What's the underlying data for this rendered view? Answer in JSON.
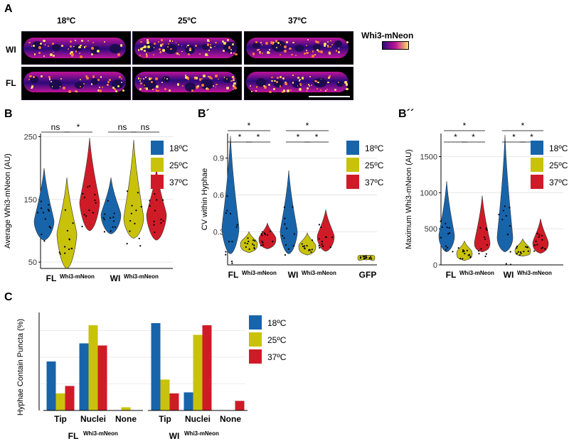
{
  "panels": {
    "A": "A",
    "B": "B",
    "B2": "B´",
    "B3": "B´´",
    "C": "C"
  },
  "panelA": {
    "temps": [
      "18ºC",
      "25ºC",
      "37ºC"
    ],
    "rows": [
      "WI",
      "FL"
    ],
    "legend_title": "Whi3-mNeon",
    "colors": {
      "low": "#2a0a7a",
      "mid": "#c1139a",
      "high": "#ffe066"
    }
  },
  "legend": {
    "items": [
      {
        "label": "18ºC",
        "color": "#1764ab"
      },
      {
        "label": "25ºC",
        "color": "#c8c20b"
      },
      {
        "label": "37ºC",
        "color": "#cf1b27"
      }
    ]
  },
  "chart_data": [
    {
      "id": "B",
      "type": "violin",
      "ylabel": "Average Whi3-mNeon (AU)",
      "ylim": [
        40,
        255
      ],
      "yticks": [
        50,
        150,
        250
      ],
      "groups": [
        "FL",
        "WI"
      ],
      "group_sub": "Whi3-mNeon",
      "series": [
        "18ºC",
        "25ºC",
        "37ºC"
      ],
      "values": {
        "FL": {
          "18ºC": {
            "min": 85,
            "median": 115,
            "max": 200
          },
          "25ºC": {
            "min": 40,
            "median": 95,
            "max": 185
          },
          "37ºC": {
            "min": 100,
            "median": 145,
            "max": 248
          }
        },
        "WI": {
          "18ºC": {
            "min": 95,
            "median": 125,
            "max": 185
          },
          "25ºC": {
            "min": 88,
            "median": 120,
            "max": 245
          },
          "37ºC": {
            "min": 85,
            "median": 125,
            "max": 200
          }
        }
      },
      "significance": [
        {
          "label": "ns",
          "group": "FL",
          "from": "18ºC",
          "to": "25ºC"
        },
        {
          "label": "*",
          "group": "FL",
          "from": "25ºC",
          "to": "37ºC"
        },
        {
          "label": "ns",
          "group": "WI",
          "from": "18ºC",
          "to": "25ºC"
        },
        {
          "label": "ns",
          "group": "WI",
          "from": "25ºC",
          "to": "37ºC"
        }
      ]
    },
    {
      "id": "B2",
      "type": "violin",
      "ylabel": "CV within Hyphae",
      "ylim": [
        0.03,
        1.1
      ],
      "yticks": [
        0.3,
        0.6,
        0.9
      ],
      "groups": [
        "FL",
        "WI",
        "GFP"
      ],
      "group_sub": "Whi3-mNeon",
      "series": [
        "18ºC",
        "25ºC",
        "37ºC"
      ],
      "values": {
        "FL": {
          "18ºC": {
            "min": 0.12,
            "median": 0.33,
            "max": 1.08
          },
          "25ºC": {
            "min": 0.13,
            "median": 0.2,
            "max": 0.3
          },
          "37ºC": {
            "min": 0.16,
            "median": 0.24,
            "max": 0.37
          }
        },
        "WI": {
          "18ºC": {
            "min": 0.12,
            "median": 0.3,
            "max": 0.8
          },
          "25ºC": {
            "min": 0.11,
            "median": 0.18,
            "max": 0.29
          },
          "37ºC": {
            "min": 0.14,
            "median": 0.26,
            "max": 0.48
          }
        },
        "GFP": {
          "25ºC": {
            "min": 0.07,
            "median": 0.09,
            "max": 0.11
          }
        }
      },
      "significance": [
        {
          "label": "*",
          "group": "FL",
          "from": "18ºC",
          "to": "37ºC"
        },
        {
          "label": "*",
          "group": "FL",
          "from": "18ºC",
          "to": "25ºC"
        },
        {
          "label": "*",
          "group": "FL",
          "from": "25ºC",
          "to": "37ºC"
        },
        {
          "label": "*",
          "group": "WI",
          "from": "18ºC",
          "to": "37ºC"
        },
        {
          "label": "*",
          "group": "WI",
          "from": "18ºC",
          "to": "25ºC"
        },
        {
          "label": "*",
          "group": "WI",
          "from": "25ºC",
          "to": "37ºC"
        }
      ]
    },
    {
      "id": "B3",
      "type": "violin",
      "ylabel": "Maximum Whi3-mNeon (AU)",
      "ylim": [
        0,
        1820
      ],
      "yticks": [
        0,
        500,
        1000,
        1500
      ],
      "groups": [
        "FL",
        "WI"
      ],
      "group_sub": "Whi3-mNeon",
      "series": [
        "18ºC",
        "25ºC",
        "37ºC"
      ],
      "values": {
        "FL": {
          "18ºC": {
            "min": 180,
            "median": 400,
            "max": 1160
          },
          "25ºC": {
            "min": 60,
            "median": 160,
            "max": 330
          },
          "37ºC": {
            "min": 180,
            "median": 300,
            "max": 960
          }
        },
        "WI": {
          "18ºC": {
            "min": 180,
            "median": 380,
            "max": 1800
          },
          "25ºC": {
            "min": 120,
            "median": 200,
            "max": 360
          },
          "37ºC": {
            "min": 160,
            "median": 300,
            "max": 640
          }
        }
      },
      "significance": [
        {
          "label": "*",
          "group": "FL",
          "from": "18ºC",
          "to": "37ºC"
        },
        {
          "label": "*",
          "group": "FL",
          "from": "18ºC",
          "to": "25ºC"
        },
        {
          "label": "*",
          "group": "FL",
          "from": "25ºC",
          "to": "37ºC"
        },
        {
          "label": "*",
          "group": "WI",
          "from": "18ºC",
          "to": "37ºC"
        },
        {
          "label": "*",
          "group": "WI",
          "from": "18ºC",
          "to": "25ºC"
        },
        {
          "label": "*",
          "group": "WI",
          "from": "25ºC",
          "to": "37ºC"
        }
      ]
    },
    {
      "id": "C",
      "type": "bar",
      "ylabel": "Hyphae Contain Puncta (%)",
      "ylim": [
        0,
        92
      ],
      "categories": [
        "Tip",
        "Nuclei",
        "None",
        "Tip",
        "Nuclei",
        "None"
      ],
      "groups": [
        {
          "name": "FL",
          "sub": "Whi3-mNeon"
        },
        {
          "name": "WI",
          "sub": "Whi3-mNeon"
        }
      ],
      "series": [
        {
          "name": "18ºC",
          "values": [
            46,
            63,
            0,
            82,
            17,
            0
          ]
        },
        {
          "name": "25ºC",
          "values": [
            16,
            80,
            3,
            29,
            71,
            0
          ]
        },
        {
          "name": "37ºC",
          "values": [
            23,
            61,
            0,
            16,
            80,
            9
          ]
        }
      ]
    }
  ]
}
